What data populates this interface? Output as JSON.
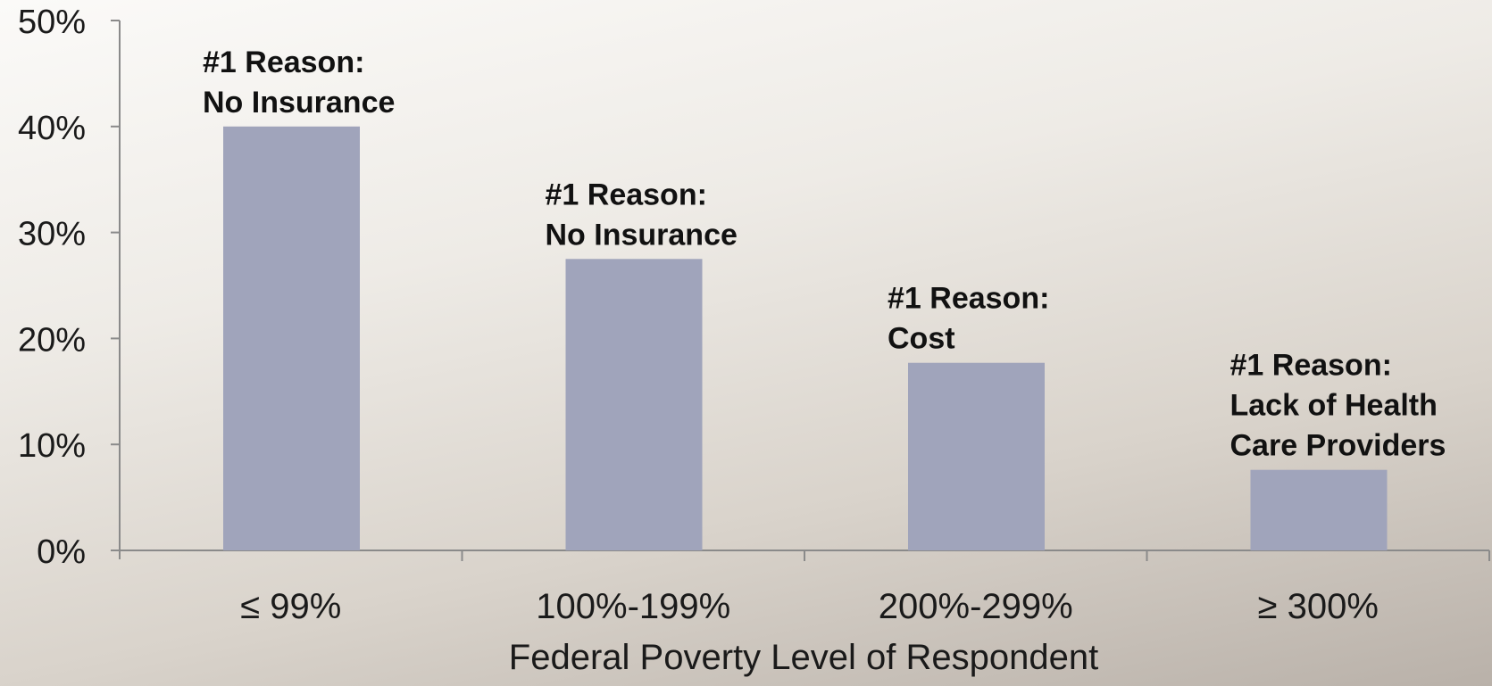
{
  "chart_data": {
    "type": "bar",
    "title": "",
    "xlabel": "Federal Poverty Level of Respondent",
    "ylabel": "",
    "categories": [
      "≤ 99%",
      "100%-199%",
      "200%-299%",
      "≥ 300%"
    ],
    "values": [
      40,
      27.5,
      17.7,
      7.6
    ],
    "ylim": [
      0,
      50
    ],
    "yticks": [
      0,
      10,
      20,
      30,
      40,
      50
    ],
    "ytick_labels": [
      "0%",
      "10%",
      "20%",
      "30%",
      "40%",
      "50%"
    ],
    "bar_color": "#a0a4bb",
    "grid": false,
    "legend": "none",
    "annotations": [
      [
        "#1 Reason:",
        "No Insurance"
      ],
      [
        "#1 Reason:",
        "No Insurance"
      ],
      [
        "#1 Reason:",
        "Cost"
      ],
      [
        "#1 Reason:",
        "Lack of Health",
        "Care Providers"
      ]
    ]
  }
}
